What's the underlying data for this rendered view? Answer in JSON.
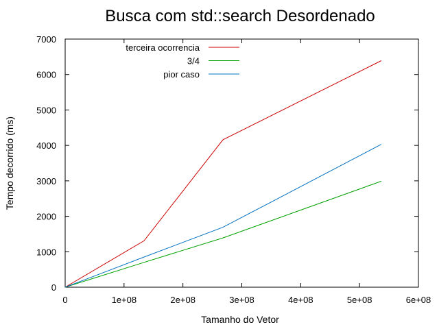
{
  "chart_data": {
    "type": "line",
    "title": "Busca com std::search Desordenado",
    "xlabel": "Tamanho do Vetor",
    "ylabel": "Tempo decorrido (ms)",
    "xlim": [
      0,
      600000000
    ],
    "ylim": [
      0,
      7000
    ],
    "x_ticks": [
      0,
      100000000,
      200000000,
      300000000,
      400000000,
      500000000,
      600000000
    ],
    "x_tick_labels": [
      "0",
      "1e+08",
      "2e+08",
      "3e+08",
      "4e+08",
      "5e+08",
      "6e+08"
    ],
    "y_ticks": [
      0,
      1000,
      2000,
      3000,
      4000,
      5000,
      6000,
      7000
    ],
    "y_tick_labels": [
      "0",
      "1000",
      "2000",
      "3000",
      "4000",
      "5000",
      "6000",
      "7000"
    ],
    "grid": false,
    "legend_position": "top-left",
    "series": [
      {
        "name": "terceira ocorrencia",
        "color": "#cc0000",
        "x": [
          0,
          134000000,
          268000000,
          537000000
        ],
        "y": [
          0,
          1310,
          4160,
          6390
        ]
      },
      {
        "name": "3/4",
        "color": "#00a000",
        "x": [
          0,
          134000000,
          268000000,
          537000000
        ],
        "y": [
          0,
          700,
          1390,
          2990
        ]
      },
      {
        "name": "pior caso",
        "color": "#0070c0",
        "x": [
          0,
          134000000,
          268000000,
          537000000
        ],
        "y": [
          0,
          850,
          1690,
          4030
        ]
      }
    ]
  }
}
